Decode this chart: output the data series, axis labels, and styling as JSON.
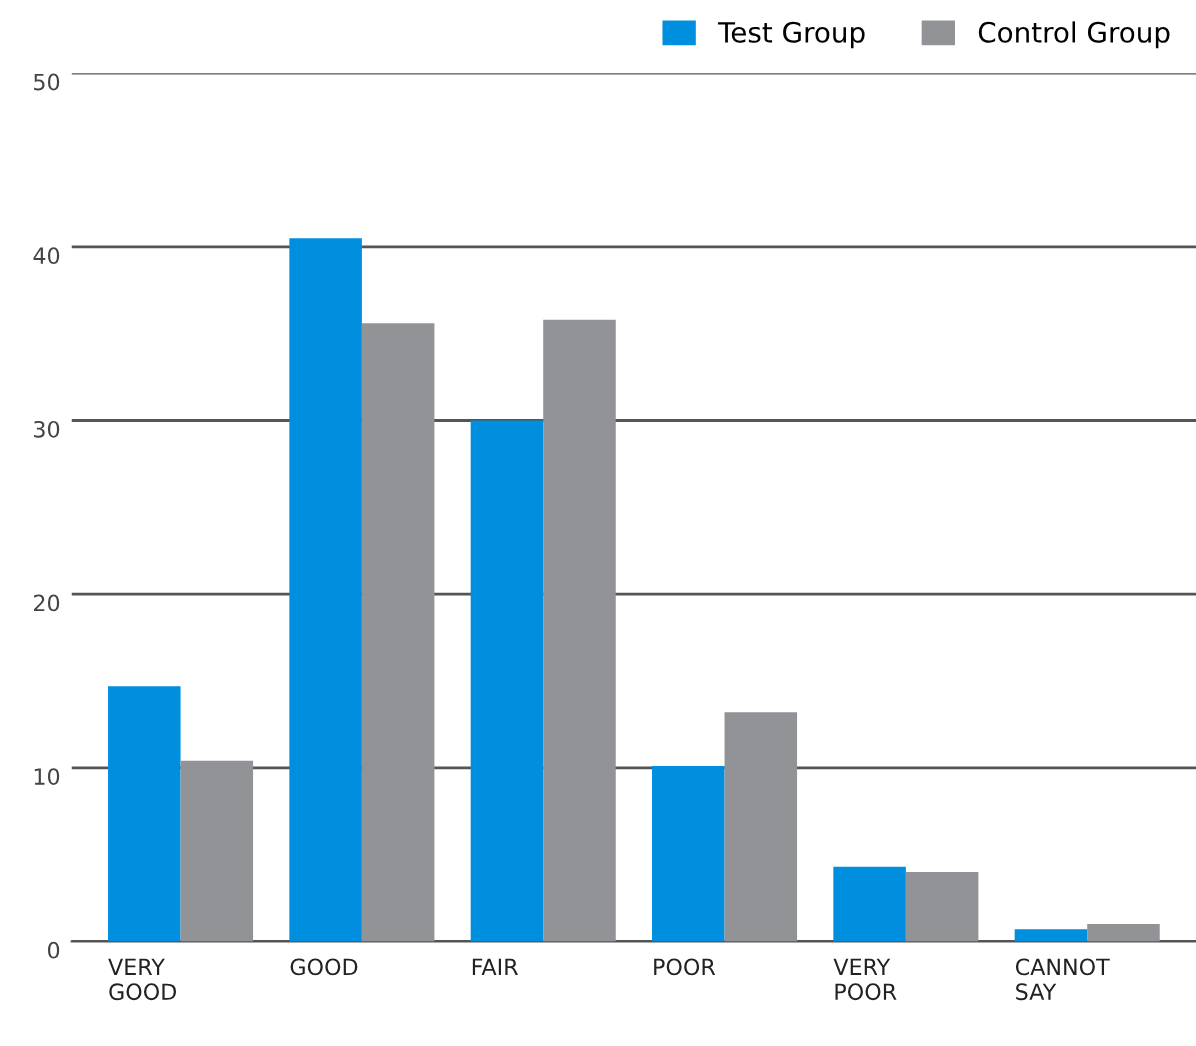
{
  "chart_data": {
    "type": "bar",
    "categories": [
      "VERY\nGOOD",
      "GOOD",
      "FAIR",
      "POOR",
      "VERY\nPOOR",
      "CANNOT\nSAY"
    ],
    "series": [
      {
        "name": "Test Group",
        "color": "#008fde",
        "values": [
          14.7,
          40.5,
          30.0,
          10.1,
          4.3,
          0.7
        ]
      },
      {
        "name": "Control Group",
        "color": "#929396",
        "values": [
          10.4,
          35.6,
          35.8,
          13.2,
          4.0,
          1.0
        ]
      }
    ],
    "ylim": [
      0,
      50
    ],
    "yticks": [
      0,
      10,
      20,
      30,
      40,
      50
    ],
    "grid": "y",
    "legend": "top right"
  }
}
